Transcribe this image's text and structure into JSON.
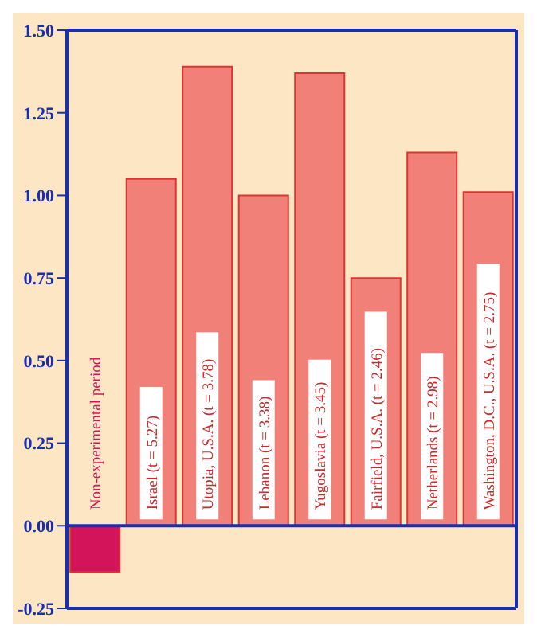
{
  "chart_data": {
    "type": "bar",
    "categories": [
      "Non-experimental period",
      "Israel (t = 5.27)",
      "Utopia, U.S.A. (t = 3.78)",
      "Lebanon (t = 3.38)",
      "Yugoslavia (t = 3.45)",
      "Fairfield, U.S.A. (t = 2.46)",
      "Netherlands (t = 2.98)",
      "Washington, D.C., U.S.A. (t = 2.75)"
    ],
    "values": [
      -0.14,
      1.05,
      1.39,
      1.0,
      1.37,
      0.75,
      1.13,
      1.01
    ],
    "colors": [
      "#d4145a",
      "#f08078",
      "#f08078",
      "#f08078",
      "#f08078",
      "#f08078",
      "#f08078",
      "#f08078"
    ],
    "ylim": [
      -0.25,
      1.5
    ],
    "yticks": [
      {
        "value": -0.25,
        "label": "-0.25"
      },
      {
        "value": 0,
        "label": "0.00"
      },
      {
        "value": 0.25,
        "label": "0.25"
      },
      {
        "value": 0.5,
        "label": "0.50"
      },
      {
        "value": 0.75,
        "label": "0.75"
      },
      {
        "value": 1,
        "label": "1.00"
      },
      {
        "value": 1.25,
        "label": "1.25"
      },
      {
        "value": 1.5,
        "label": "1.50"
      }
    ],
    "relative": false
  }
}
